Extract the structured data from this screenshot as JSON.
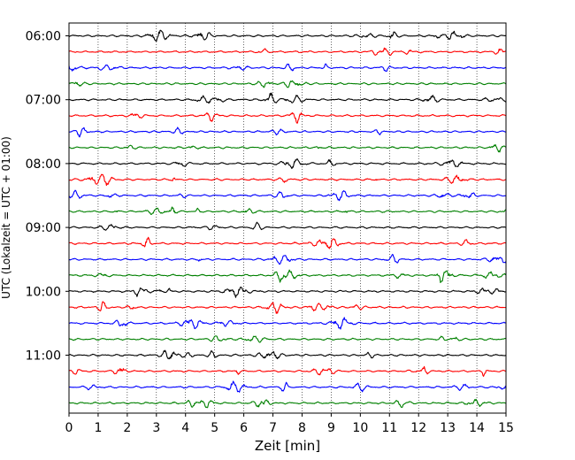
{
  "chart_data": {
    "type": "line",
    "title": "",
    "xlabel": "Zeit  [min]",
    "ylabel": "UTC (Lokalzeit = UTC + 01:00)",
    "xlim": [
      0,
      15
    ],
    "x_ticks": [
      0,
      1,
      2,
      3,
      4,
      5,
      6,
      7,
      8,
      9,
      10,
      11,
      12,
      13,
      14,
      15
    ],
    "x_tick_labels": [
      "0",
      "1",
      "2",
      "3",
      "4",
      "5",
      "6",
      "7",
      "8",
      "9",
      "10",
      "11",
      "12",
      "13",
      "14",
      "15"
    ],
    "y_tick_labels": [
      "06:00",
      "07:00",
      "08:00",
      "09:00",
      "10:00",
      "11:00"
    ],
    "y_tick_rows": [
      0,
      4,
      8,
      12,
      16,
      20
    ],
    "grid": "vertical dotted at each minute",
    "trace_count": 24,
    "trace_interval_min": 15,
    "trace_colors": [
      "#000000",
      "#ff0000",
      "#0000ff",
      "#008000"
    ],
    "trace_start_times": [
      "06:00",
      "06:15",
      "06:30",
      "06:45",
      "07:00",
      "07:15",
      "07:30",
      "07:45",
      "08:00",
      "08:15",
      "08:30",
      "08:45",
      "09:00",
      "09:15",
      "09:30",
      "09:45",
      "10:00",
      "10:15",
      "10:30",
      "10:45",
      "11:00",
      "11:15",
      "11:30",
      "11:45"
    ]
  }
}
